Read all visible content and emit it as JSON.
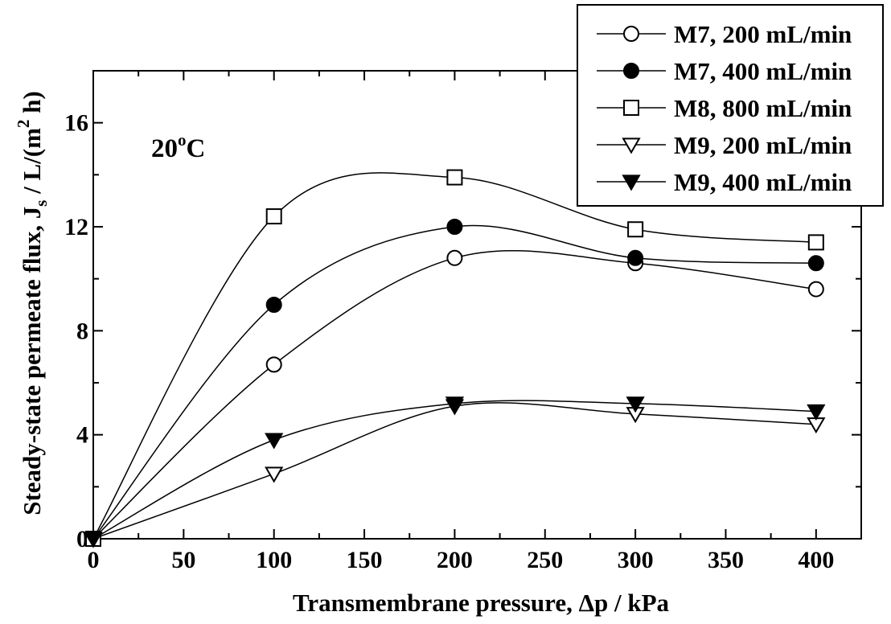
{
  "chart_data": {
    "type": "line",
    "xlabel": "Transmembrane pressure, Δp / kPa",
    "ylabel": {
      "pre": "Steady-state permeate flux, J",
      "sub": "s",
      "mid": " / L/(m",
      "sup": "2",
      "post": " h)"
    },
    "annotation": {
      "base": "20",
      "sup": "o",
      "tail": "C"
    },
    "xlim": [
      0,
      425
    ],
    "ylim": [
      0,
      18
    ],
    "xticks": [
      0,
      50,
      100,
      150,
      200,
      250,
      300,
      350,
      400
    ],
    "xtick_labels": [
      "0",
      "50",
      "100",
      "150",
      "200",
      "250",
      "300",
      "350",
      "400"
    ],
    "yticks": [
      0,
      4,
      8,
      12,
      16
    ],
    "ytick_labels": [
      "0",
      "4",
      "8",
      "12",
      "16"
    ],
    "grid": false,
    "legend_position": "top-right",
    "x": [
      0,
      100,
      200,
      300,
      400
    ],
    "series": [
      {
        "name": "M7, 200 mL/min",
        "marker": "circle",
        "filled": false,
        "values": [
          0,
          6.7,
          10.8,
          10.6,
          9.6
        ]
      },
      {
        "name": "M7, 400 mL/min",
        "marker": "circle",
        "filled": true,
        "values": [
          0,
          9.0,
          12.0,
          10.8,
          10.6
        ]
      },
      {
        "name": "M8, 800 mL/min",
        "marker": "square",
        "filled": false,
        "values": [
          0,
          12.4,
          13.9,
          11.9,
          11.4
        ]
      },
      {
        "name": "M9, 200 mL/min",
        "marker": "triangle-down",
        "filled": false,
        "values": [
          0,
          2.5,
          5.1,
          4.8,
          4.4
        ]
      },
      {
        "name": "M9, 400 mL/min",
        "marker": "triangle-down",
        "filled": true,
        "values": [
          0,
          3.8,
          5.2,
          5.2,
          4.9
        ]
      }
    ]
  }
}
